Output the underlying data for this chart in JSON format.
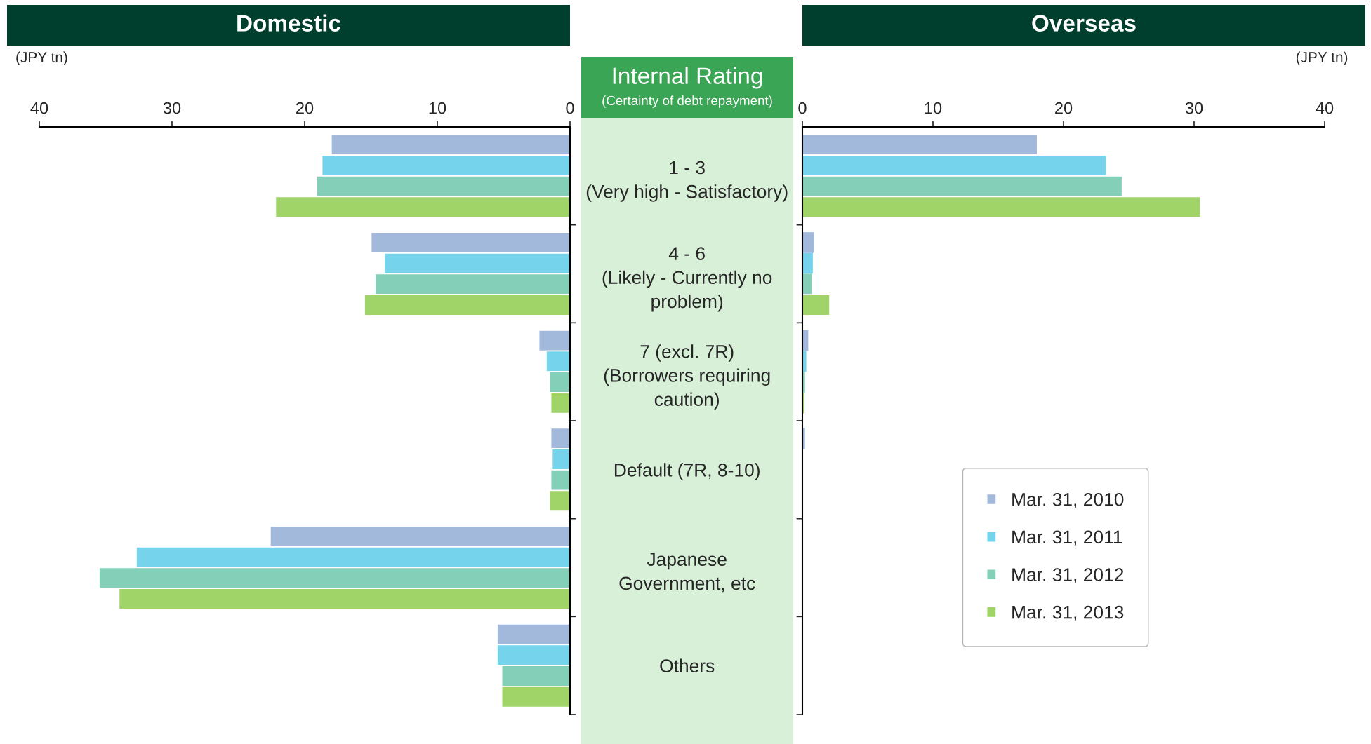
{
  "chart_data": [
    {
      "type": "bar",
      "orientation": "horizontal",
      "title": "Domestic",
      "xlabel": "(JPY tn)",
      "ylabel": "Internal Rating",
      "annotations": [
        "(Certainty of debt repayment)"
      ],
      "categories": [
        "1 - 3\n(Very high - Satisfactory)",
        "4 - 6\n(Likely - Currently no\nproblem)",
        "7 (excl. 7R)\n(Borrowers requiring\ncaution)",
        "Default (7R, 8-10)",
        "Japanese\nGovernment, etc",
        "Others"
      ],
      "xlim": [
        40,
        0
      ],
      "xticks": [
        40,
        30,
        20,
        10,
        0
      ],
      "series": [
        {
          "color": "#a3b9dc",
          "values": [
            18.0,
            15.0,
            2.35,
            1.45,
            22.6,
            5.5
          ]
        },
        {
          "color": "#76d3ec",
          "values": [
            18.7,
            14.0,
            1.8,
            1.35,
            32.7,
            5.5
          ]
        },
        {
          "color": "#84cfb8",
          "values": [
            19.1,
            14.7,
            1.55,
            1.45,
            35.5,
            5.15
          ]
        },
        {
          "color": "#a0d468",
          "values": [
            22.2,
            15.5,
            1.45,
            1.55,
            34.0,
            5.15
          ]
        }
      ]
    },
    {
      "type": "bar",
      "orientation": "horizontal",
      "title": "Overseas",
      "xlabel": "(JPY tn)",
      "categories": [
        null,
        null,
        null,
        null,
        null,
        null
      ],
      "xlim": [
        0,
        40
      ],
      "xticks": [
        0,
        10,
        20,
        30,
        40
      ],
      "legend": "lower right",
      "series": [
        {
          "name": "Mar. 31, 2010",
          "color": "#a3b9dc",
          "values": [
            18.0,
            0.9,
            0.45,
            0.2,
            0,
            0
          ]
        },
        {
          "name": "Mar. 31, 2011",
          "color": "#76d3ec",
          "values": [
            23.3,
            0.8,
            0.3,
            0,
            0,
            0
          ]
        },
        {
          "name": "Mar. 31, 2012",
          "color": "#84cfb8",
          "values": [
            24.5,
            0.7,
            0.2,
            0,
            0,
            0
          ]
        },
        {
          "name": "Mar. 31, 2013",
          "color": "#a0d468",
          "values": [
            30.5,
            2.1,
            0.15,
            0,
            0,
            0
          ]
        }
      ]
    }
  ]
}
